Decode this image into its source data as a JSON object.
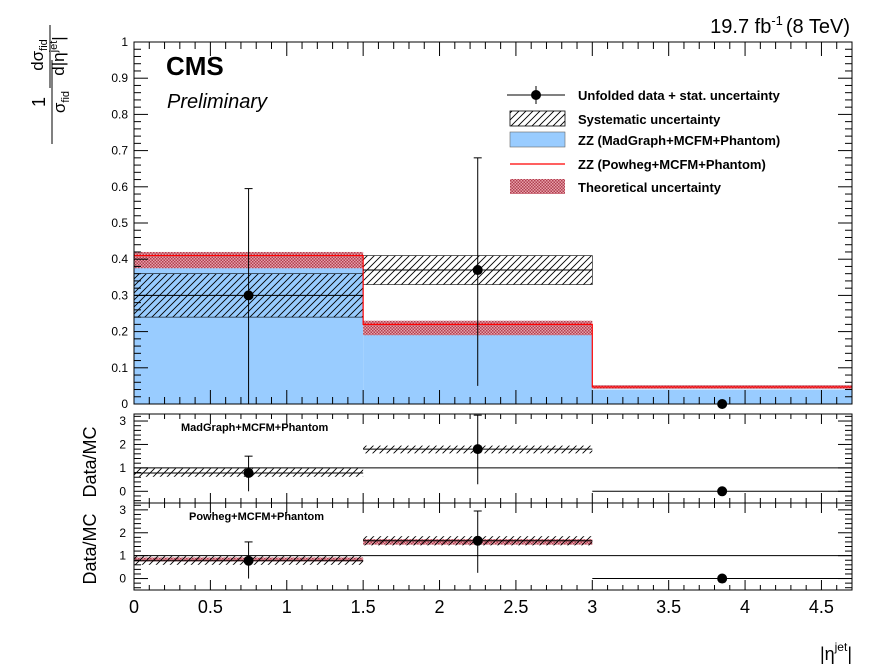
{
  "header": {
    "lumi_value": "19.7 fb",
    "lumi_exponent": "-1",
    "lumi_energy": "(8 TeV)",
    "cms_label": "CMS",
    "preliminary_label": "Preliminary"
  },
  "axes": {
    "x_title_main": "|η",
    "x_title_sup": "jet",
    "x_title_close": "|",
    "y_title_numerator_one": "1",
    "y_title_sigma": "σ",
    "y_title_fid": "fid",
    "y_title_d_sigma": "dσ",
    "y_title_d_eta": "d|η",
    "y_title_jet": "jet",
    "y_title_close": "|",
    "ratio_ylabel": "Data/MC"
  },
  "legend": [
    {
      "id": "data",
      "label": "Unfolded data + stat. uncertainty"
    },
    {
      "id": "syst",
      "label": "Systematic uncertainty"
    },
    {
      "id": "madgraph",
      "label": "ZZ (MadGraph+MCFM+Phantom)"
    },
    {
      "id": "powheg",
      "label": "ZZ (Powheg+MCFM+Phantom)"
    },
    {
      "id": "theory",
      "label": "Theoretical uncertainty"
    }
  ],
  "colors": {
    "madgraph_fill": "#99ccff",
    "powheg_line": "#ff0000",
    "theory_band": "#cc6677",
    "data": "#000000"
  },
  "chart_data": [
    {
      "type": "bar",
      "panel": "main",
      "xlim": [
        0,
        4.7
      ],
      "ylim": [
        0,
        1
      ],
      "x_ticks": [
        "0",
        "0.5",
        "1",
        "1.5",
        "2",
        "2.5",
        "3",
        "3.5",
        "4",
        "4.5"
      ],
      "y_ticks": [
        "0",
        "0.1",
        "0.2",
        "0.3",
        "0.4",
        "0.5",
        "0.6",
        "0.7",
        "0.8",
        "0.9",
        "1"
      ],
      "bin_edges": [
        0,
        1.5,
        3,
        4.7
      ],
      "data": {
        "x": [
          0.75,
          2.25,
          3.85
        ],
        "y": [
          0.3,
          0.37,
          0.0
        ],
        "stat_lo": [
          0.3,
          0.32,
          0.0
        ],
        "stat_hi": [
          0.295,
          0.31,
          0.0
        ]
      },
      "systematic": {
        "lo": [
          0.24,
          0.33,
          null
        ],
        "hi": [
          0.36,
          0.41,
          null
        ]
      },
      "madgraph": [
        0.38,
        0.195,
        0.04
      ],
      "powheg": [
        0.41,
        0.22,
        0.047
      ],
      "theory_band": {
        "lo": [
          0.375,
          0.19,
          0.042
        ],
        "hi": [
          0.42,
          0.23,
          0.052
        ]
      }
    },
    {
      "type": "scatter",
      "panel": "ratio_madgraph",
      "label": "MadGraph+MCFM+Phantom",
      "ylim": [
        -0.5,
        3.3
      ],
      "y_ticks": [
        "0",
        "1",
        "2",
        "3"
      ],
      "ratio": {
        "x": [
          0.75,
          2.25,
          3.85
        ],
        "y": [
          0.78,
          1.8,
          0.0
        ],
        "err_lo": [
          0.78,
          1.5,
          0.0
        ],
        "err_hi": [
          0.72,
          1.45,
          0.0
        ]
      },
      "systematic": {
        "lo": [
          0.62,
          1.62,
          null
        ],
        "hi": [
          0.98,
          1.95,
          null
        ]
      }
    },
    {
      "type": "scatter",
      "panel": "ratio_powheg",
      "label": "Powheg+MCFM+Phantom",
      "ylim": [
        -0.5,
        3.3
      ],
      "y_ticks": [
        "0",
        "1",
        "2",
        "3"
      ],
      "ratio": {
        "x": [
          0.75,
          2.25,
          3.85
        ],
        "y": [
          0.78,
          1.65,
          0.0
        ],
        "err_lo": [
          0.78,
          1.4,
          0.0
        ],
        "err_hi": [
          0.82,
          1.3,
          0.0
        ]
      },
      "systematic": {
        "lo": [
          0.6,
          1.45,
          null
        ],
        "hi": [
          0.98,
          1.85,
          null
        ]
      },
      "theory_band": {
        "lo": [
          0.75,
          1.48,
          null
        ],
        "hi": [
          0.92,
          1.72,
          null
        ]
      }
    }
  ]
}
